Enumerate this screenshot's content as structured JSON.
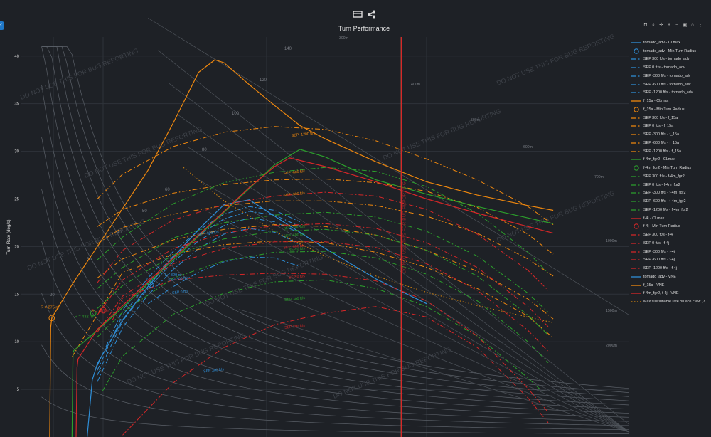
{
  "toolbar": {
    "icons": [
      "panel-toggle-icon",
      "share-icon"
    ]
  },
  "sidebar": {
    "toggle_icon": "chevron-left-icon"
  },
  "modebar": {
    "icons": [
      "camera-icon",
      "zoom-icon",
      "pan-icon",
      "zoom-in-icon",
      "zoom-out-icon",
      "autoscale-icon",
      "reset-icon",
      "spike-icon"
    ]
  },
  "watermark": "DO NOT USE THIS FOR BUG REPORTING",
  "chart_data": {
    "type": "line",
    "title": "Turn Performance",
    "xlabel": "",
    "ylabel": "Turn Rate (deg/s)",
    "xlim": [
      0,
      1200
    ],
    "ylim": [
      0,
      42
    ],
    "yticks": [
      5,
      10,
      15,
      20,
      25,
      30,
      35,
      40
    ],
    "grid": true,
    "legend": "right",
    "colors": {
      "tornado_adv": "#2f8fd8",
      "f_15a": "#f0880e",
      "f-4m_fgr2": "#2ca02c",
      "f-4j": "#d62728",
      "sustainable": "#d6860f"
    },
    "series": [
      {
        "name": "tornado_adv - CLmax",
        "style": "solid",
        "group": "tornado_adv",
        "x": [
          130,
          140,
          150,
          200,
          250,
          300,
          350,
          400,
          450,
          500,
          520,
          600,
          700,
          800
        ],
        "y": [
          0,
          6.0,
          7.7,
          12.3,
          15.8,
          18.9,
          21.8,
          24.4,
          24.9,
          23.2,
          22.5,
          19.8,
          16.6,
          14.0
        ]
      },
      {
        "name": "tornado_adv - Min Turn Radius",
        "marker": "circle",
        "group": "tornado_adv",
        "x": [
          256
        ],
        "y": [
          16.0
        ]
      },
      {
        "name": "SEP 300 ft/s - tornado_adv",
        "style": "dashdot",
        "group": "tornado_adv",
        "x": [
          250,
          300,
          350,
          400,
          450,
          500,
          550
        ],
        "y": [
          14.0,
          15.8,
          17.3,
          18.4,
          18.9,
          18.8,
          17.9
        ]
      },
      {
        "name": "SEP 0 ft/s - tornado_adv",
        "style": "dashdot",
        "group": "tornado_adv",
        "x": [
          150,
          200,
          250,
          300,
          350,
          400,
          450,
          500,
          550
        ],
        "y": [
          5.8,
          11.5,
          14.9,
          17.6,
          19.8,
          21.3,
          21.9,
          21.5,
          20.2
        ]
      },
      {
        "name": "SEP -300 ft/s - tornado_adv",
        "style": "dashdot",
        "group": "tornado_adv",
        "x": [
          150,
          200,
          250,
          300,
          350,
          400,
          450,
          500,
          550
        ],
        "y": [
          6.5,
          12.2,
          15.6,
          18.4,
          20.6,
          22.2,
          23.0,
          22.6,
          21.4
        ]
      },
      {
        "name": "SEP -600 ft/s - tornado_adv",
        "style": "dashdot",
        "group": "tornado_adv",
        "x": [
          150,
          200,
          250,
          300,
          350,
          400,
          450,
          500,
          550
        ],
        "y": [
          7.0,
          12.8,
          16.2,
          19.0,
          21.2,
          22.9,
          23.7,
          23.3,
          22.1
        ]
      },
      {
        "name": "SEP -1200 ft/s - tornado_adv",
        "style": "dashdot",
        "group": "tornado_adv",
        "x": [
          150,
          200,
          250,
          300,
          350,
          400,
          450,
          500,
          550
        ],
        "y": [
          7.5,
          13.3,
          16.7,
          19.5,
          21.7,
          23.4,
          24.2,
          23.8,
          22.6
        ]
      },
      {
        "name": "f_15a - CLmax",
        "style": "solid",
        "group": "f_15a",
        "x": [
          56,
          58,
          60,
          100,
          150,
          200,
          250,
          300,
          350,
          382,
          400,
          450,
          500,
          550,
          600,
          700,
          800,
          900,
          1000,
          1050
        ],
        "y": [
          0,
          11.5,
          12.5,
          16.0,
          20.0,
          24.0,
          28.0,
          33.0,
          38.3,
          39.6,
          39.3,
          37.0,
          34.8,
          32.7,
          31.3,
          28.9,
          26.8,
          25.4,
          24.3,
          23.8
        ]
      },
      {
        "name": "f_15a - Min Turn Radius",
        "marker": "circle",
        "group": "f_15a",
        "x": [
          60
        ],
        "y": [
          12.5
        ]
      },
      {
        "name": "SEP 300 ft/s - f_15a",
        "style": "dashdot",
        "group": "f_15a",
        "x": [
          100,
          200,
          300,
          400,
          500,
          600,
          700,
          800,
          900,
          1000,
          1050
        ],
        "y": [
          8.4,
          17.3,
          19.2,
          20.2,
          20.6,
          20.4,
          19.4,
          17.8,
          15.6,
          12.7,
          10.4
        ]
      },
      {
        "name": "SEP 0 ft/s - f_15a",
        "style": "dashdot",
        "group": "f_15a",
        "x": [
          150,
          200,
          300,
          400,
          500,
          600,
          700,
          800,
          900,
          1000,
          1050
        ],
        "y": [
          16.7,
          18.7,
          20.7,
          21.8,
          22.3,
          22.1,
          21.2,
          19.6,
          17.4,
          14.5,
          12.4
        ]
      },
      {
        "name": "SEP -300 ft/s - f_15a",
        "style": "dashdot",
        "group": "f_15a",
        "x": [
          150,
          200,
          300,
          400,
          500,
          600,
          700,
          800,
          900,
          1000,
          1050
        ],
        "y": [
          20.3,
          22.0,
          23.4,
          24.3,
          24.8,
          24.8,
          24.3,
          23.2,
          21.4,
          18.7,
          16.9
        ]
      },
      {
        "name": "SEP -600 ft/s - f_15a",
        "style": "dashdot",
        "group": "f_15a",
        "x": [
          150,
          200,
          300,
          400,
          500,
          600,
          700,
          800,
          900,
          1000,
          1050
        ],
        "y": [
          22.1,
          23.9,
          25.6,
          26.5,
          27.0,
          27.1,
          26.7,
          25.8,
          24.1,
          21.3,
          19.2
        ]
      },
      {
        "name": "SEP -1200 ft/s - f_15a",
        "style": "dashdot",
        "group": "f_15a",
        "x": [
          150,
          200,
          300,
          400,
          500,
          600,
          700,
          800,
          900,
          1000,
          1050
        ],
        "y": [
          25.0,
          27.6,
          30.5,
          32.0,
          32.6,
          32.3,
          31.1,
          29.2,
          27.0,
          24.2,
          22.3
        ]
      },
      {
        "name": "f-4m_fgr2 - CLmax",
        "style": "solid",
        "group": "f-4m_fgr2",
        "x": [
          100,
          102,
          104,
          150,
          200,
          250,
          300,
          350,
          400,
          450,
          500,
          550,
          600,
          650,
          700,
          800,
          900,
          1000,
          1050
        ],
        "y": [
          0,
          8.9,
          9.1,
          11.2,
          13.6,
          16.1,
          18.6,
          21.1,
          23.6,
          26.1,
          28.6,
          30.2,
          29.4,
          28.2,
          27.0,
          25.5,
          24.2,
          23.0,
          22.4
        ]
      },
      {
        "name": "f-4m_fgr2 - Min Turn Radius",
        "marker": "circle",
        "group": "f-4m_fgr2",
        "x": [
          142
        ],
        "y": [
          13.0
        ]
      },
      {
        "name": "SEP 300 ft/s - f-4m_fgr2",
        "style": "dashdot",
        "group": "f-4m_fgr2",
        "x": [
          160,
          200,
          300,
          400,
          500,
          600,
          700,
          800,
          900,
          1000,
          1030
        ],
        "y": [
          4.8,
          8.5,
          12.9,
          15.1,
          16.3,
          16.5,
          15.6,
          13.7,
          10.6,
          6.2,
          4.7
        ]
      },
      {
        "name": "SEP 0 ft/s - f-4m_fgr2",
        "style": "dashdot",
        "group": "f-4m_fgr2",
        "x": [
          150,
          200,
          300,
          400,
          500,
          600,
          700,
          800,
          900,
          1000,
          1040
        ],
        "y": [
          10.5,
          13.1,
          16.7,
          18.5,
          19.4,
          19.5,
          18.8,
          17.1,
          14.3,
          10.0,
          7.8
        ]
      },
      {
        "name": "SEP -300 ft/s - f-4m_fgr2",
        "style": "dashdot",
        "group": "f-4m_fgr2",
        "x": [
          150,
          200,
          300,
          400,
          500,
          600,
          700,
          800,
          900,
          1000,
          1040
        ],
        "y": [
          13.5,
          15.9,
          19.1,
          20.8,
          21.6,
          21.8,
          21.2,
          19.6,
          16.9,
          12.8,
          10.7
        ]
      },
      {
        "name": "SEP -600 ft/s - f-4m_fgr2",
        "style": "dashdot",
        "group": "f-4m_fgr2",
        "x": [
          150,
          200,
          300,
          400,
          500,
          600,
          700,
          800,
          900,
          1000,
          1040
        ],
        "y": [
          15.6,
          17.8,
          20.9,
          22.5,
          23.3,
          23.6,
          23.1,
          21.6,
          19.0,
          15.1,
          13.1
        ]
      },
      {
        "name": "SEP -1200 ft/s - f-4m_fgr2",
        "style": "dashdot",
        "group": "f-4m_fgr2",
        "x": [
          150,
          200,
          300,
          400,
          500,
          600,
          700,
          800,
          900,
          1000,
          1040
        ],
        "y": [
          18.6,
          21.0,
          24.5,
          26.7,
          27.8,
          28.3,
          27.9,
          26.3,
          23.5,
          19.4,
          17.2
        ]
      },
      {
        "name": "f-4j - CLmax",
        "style": "solid",
        "group": "f-4j",
        "x": [
          108,
          110,
          112,
          150,
          200,
          250,
          300,
          350,
          400,
          450,
          500,
          530,
          600,
          700,
          800,
          900,
          1000,
          1050
        ],
        "y": [
          0,
          7.3,
          8.2,
          11.3,
          13.8,
          16.3,
          18.8,
          21.2,
          23.7,
          26.2,
          28.4,
          29.3,
          28.4,
          26.8,
          25.0,
          23.5,
          22.1,
          21.4
        ]
      },
      {
        "name": "f-4j - Min Turn Radius",
        "marker": "circle",
        "group": "f-4j",
        "x": [
          162
        ],
        "y": [
          13.3
        ]
      },
      {
        "name": "SEP 300 ft/s - f-4j",
        "style": "dashdot",
        "group": "f-4j",
        "x": [
          200,
          300,
          400,
          500,
          600,
          700,
          800,
          900,
          1000,
          1040
        ],
        "y": [
          0.2,
          5.7,
          9.4,
          11.8,
          13.0,
          13.7,
          12.6,
          9.4,
          4.1,
          1.5
        ]
      },
      {
        "name": "SEP 0 ft/s - f-4j",
        "style": "dashdot",
        "group": "f-4j",
        "x": [
          180,
          200,
          300,
          400,
          500,
          600,
          700,
          800,
          900,
          1000,
          1040
        ],
        "y": [
          12.3,
          14.6,
          16.5,
          17.0,
          17.2,
          17.1,
          16.4,
          14.3,
          10.6,
          5.1,
          2.6
        ]
      },
      {
        "name": "SEP -300 ft/s - f-4j",
        "style": "dashdot",
        "group": "f-4j",
        "x": [
          150,
          200,
          300,
          400,
          500,
          600,
          700,
          800,
          900,
          1000,
          1040
        ],
        "y": [
          11.0,
          14.8,
          18.2,
          19.8,
          20.5,
          20.5,
          19.9,
          18.2,
          15.4,
          11.2,
          9.0
        ]
      },
      {
        "name": "SEP -600 ft/s - f-4j",
        "style": "dashdot",
        "group": "f-4j",
        "x": [
          150,
          200,
          300,
          400,
          500,
          600,
          700,
          800,
          900,
          1000,
          1040
        ],
        "y": [
          12.8,
          16.5,
          19.8,
          21.4,
          22.2,
          22.4,
          21.9,
          20.4,
          17.8,
          13.7,
          11.6
        ]
      },
      {
        "name": "SEP -1200 ft/s - f-4j",
        "style": "dashdot",
        "group": "f-4j",
        "x": [
          150,
          200,
          300,
          400,
          500,
          600,
          700,
          800,
          900,
          1000,
          1040
        ],
        "y": [
          16.2,
          19.6,
          22.8,
          24.4,
          25.3,
          25.7,
          25.3,
          23.9,
          21.3,
          17.5,
          15.4
        ]
      },
      {
        "name": "tornado_adv - VNE",
        "style": "solid",
        "group": "tornado_adv",
        "x": [
          750,
          750
        ],
        "y": [
          0,
          42
        ]
      },
      {
        "name": "f_15a - VNE",
        "style": "solid",
        "group": "f_15a",
        "x": [
          750,
          750
        ],
        "y": [
          0,
          42
        ]
      },
      {
        "name": "f-4m_fgr2, f-4j - VNE",
        "style": "solid",
        "group": "f-4j",
        "x": [
          750,
          750
        ],
        "y": [
          0,
          42
        ]
      },
      {
        "name": "Max sustainable rate on ace crew (7...",
        "style": "dot",
        "group": "sustainable",
        "x": [
          320,
          400,
          500,
          600,
          700,
          800,
          900,
          1000,
          1050
        ],
        "y": [
          28.3,
          24.8,
          21.6,
          19.0,
          16.9,
          15.2,
          13.8,
          12.6,
          12.0
        ]
      }
    ],
    "annotations": {
      "min_radius_labels": [
        {
          "text": "R = 275 m",
          "group": "f_15a",
          "x": 38,
          "y": 13.5
        },
        {
          "text": "R = 432 m",
          "group": "f-4m_fgr2",
          "x": 105,
          "y": 12.5
        },
        {
          "text": "R = 457 m",
          "group": "f-4j",
          "x": 138,
          "y": 13.1
        },
        {
          "text": "R = 329 m",
          "group": "tornado_adv",
          "x": 280,
          "y": 16.9
        }
      ],
      "sep_labels": [
        {
          "text": "SEP -1200 ft/s",
          "group": "f_15a",
          "x": 580,
          "y": 31.8
        },
        {
          "text": "SEP -600 ft/s",
          "group": "f_15a",
          "x": 560,
          "y": 27.8
        },
        {
          "text": "SEP -300 ft/s",
          "group": "f_15a",
          "x": 560,
          "y": 25.5
        },
        {
          "text": "SEP -300 ft/s",
          "group": "f-4m_fgr2",
          "x": 560,
          "y": 22.0
        },
        {
          "text": "SEP -600 ft/s",
          "group": "f-4m_fgr2",
          "x": 560,
          "y": 21.2
        },
        {
          "text": "SEP 0 ft/s",
          "group": "f-4m_fgr2",
          "x": 560,
          "y": 19.7
        },
        {
          "text": "SEP -600 ft/s",
          "group": "f-4j",
          "x": 560,
          "y": 20.0
        },
        {
          "text": "SEP 0 ft/s",
          "group": "f-4j",
          "x": 560,
          "y": 16.8
        },
        {
          "text": "SEP 300 ft/s",
          "group": "f-4m_fgr2",
          "x": 560,
          "y": 14.5
        },
        {
          "text": "SEP 300 ft/s",
          "group": "f-4j",
          "x": 560,
          "y": 11.6
        },
        {
          "text": "SEP -300 ft/s",
          "group": "tornado_adv",
          "x": 390,
          "y": 21.4
        },
        {
          "text": "SEP 300 ft/s",
          "group": "tornado_adv",
          "x": 330,
          "y": 16.6
        },
        {
          "text": "SEP 0 ft/s",
          "group": "tornado_adv",
          "x": 330,
          "y": 15.2
        },
        {
          "text": "SEP 300 ft/s",
          "group": "tornado_adv",
          "x": 400,
          "y": 7.0
        }
      ],
      "speed_labels": [
        "20",
        "30",
        "40",
        "50",
        "60",
        "80",
        "100",
        "120",
        "140"
      ],
      "radius_labels": [
        "300m",
        "400m",
        "500m",
        "600m",
        "700m",
        "1000m",
        "1500m",
        "2000m"
      ],
      "vne_label": "DO NOT USE THIS FOR BUG REPORTING"
    }
  }
}
